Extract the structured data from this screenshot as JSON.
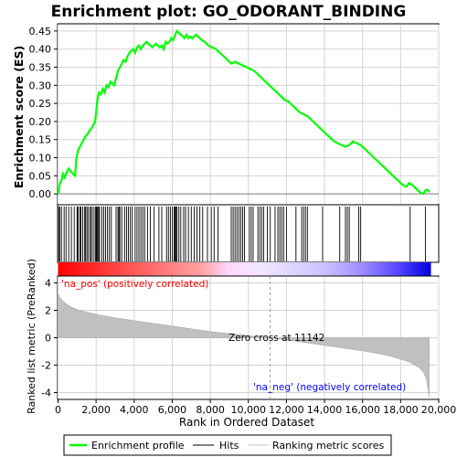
{
  "chart_data": {
    "type": "line",
    "title": "Enrichment plot: GO_ODORANT_BINDING",
    "es_panel": {
      "ylabel": "Enrichment score (ES)",
      "ylim": [
        -0.03,
        0.47
      ],
      "yticks": [
        0.0,
        0.05,
        0.1,
        0.15,
        0.2,
        0.25,
        0.3,
        0.35,
        0.4,
        0.45
      ],
      "ytick_labels": [
        "0.00",
        "0.05",
        "0.10",
        "0.15",
        "0.20",
        "0.25",
        "0.30",
        "0.35",
        "0.40",
        "0.45"
      ],
      "series_name": "Enrichment profile",
      "color": "#00ff00",
      "x": [
        0,
        100,
        200,
        250,
        350,
        450,
        550,
        700,
        900,
        950,
        1050,
        1150,
        1250,
        1350,
        1450,
        1550,
        1650,
        1750,
        1850,
        1950,
        2050,
        2100,
        2150,
        2250,
        2350,
        2450,
        2550,
        2650,
        2750,
        2850,
        2950,
        3050,
        3150,
        3250,
        3350,
        3450,
        3550,
        3650,
        3750,
        3850,
        3950,
        4050,
        4150,
        4250,
        4350,
        4450,
        4550,
        4650,
        4750,
        4850,
        4950,
        5050,
        5150,
        5250,
        5350,
        5450,
        5550,
        5650,
        5750,
        5850,
        5950,
        6050,
        6150,
        6250,
        6350,
        6450,
        6550,
        6650,
        6750,
        6850,
        6950,
        7050,
        7150,
        7250,
        7350,
        7450,
        7550,
        7700,
        7900,
        8100,
        8300,
        8500,
        8700,
        8900,
        9100,
        9300,
        9500,
        9700,
        9900,
        10100,
        10300,
        10500,
        10700,
        10900,
        11100,
        11300,
        11500,
        11700,
        11900,
        12100,
        12300,
        12500,
        12700,
        12900,
        13100,
        13300,
        13500,
        13700,
        13900,
        14100,
        14300,
        14500,
        14700,
        14900,
        15100,
        15300,
        15500,
        15700,
        15900,
        16100,
        16300,
        16500,
        16700,
        16900,
        17100,
        17300,
        17500,
        17700,
        17900,
        18100,
        18300,
        18450,
        18600,
        18800,
        19000,
        19200,
        19300,
        19400,
        19500
      ],
      "y": [
        0.0,
        0.03,
        0.04,
        0.055,
        0.045,
        0.06,
        0.07,
        0.06,
        0.05,
        0.095,
        0.12,
        0.13,
        0.14,
        0.15,
        0.16,
        0.165,
        0.175,
        0.18,
        0.19,
        0.2,
        0.25,
        0.27,
        0.28,
        0.275,
        0.29,
        0.28,
        0.3,
        0.295,
        0.31,
        0.305,
        0.3,
        0.32,
        0.34,
        0.35,
        0.36,
        0.37,
        0.365,
        0.38,
        0.39,
        0.395,
        0.4,
        0.39,
        0.405,
        0.41,
        0.4,
        0.41,
        0.415,
        0.42,
        0.415,
        0.41,
        0.405,
        0.41,
        0.415,
        0.41,
        0.405,
        0.41,
        0.4,
        0.42,
        0.415,
        0.42,
        0.43,
        0.425,
        0.44,
        0.45,
        0.445,
        0.44,
        0.435,
        0.43,
        0.44,
        0.43,
        0.435,
        0.43,
        0.435,
        0.44,
        0.435,
        0.43,
        0.425,
        0.42,
        0.41,
        0.405,
        0.4,
        0.39,
        0.38,
        0.37,
        0.36,
        0.365,
        0.36,
        0.355,
        0.35,
        0.345,
        0.34,
        0.33,
        0.32,
        0.31,
        0.3,
        0.29,
        0.28,
        0.27,
        0.26,
        0.255,
        0.245,
        0.235,
        0.225,
        0.22,
        0.215,
        0.205,
        0.195,
        0.185,
        0.175,
        0.165,
        0.155,
        0.145,
        0.14,
        0.135,
        0.13,
        0.135,
        0.145,
        0.14,
        0.135,
        0.125,
        0.115,
        0.105,
        0.095,
        0.085,
        0.075,
        0.065,
        0.055,
        0.045,
        0.035,
        0.025,
        0.02,
        0.03,
        0.025,
        0.015,
        0.005,
        0.0,
        0.01,
        0.012,
        0.005
      ]
    },
    "hits_x": [
      40,
      90,
      180,
      320,
      420,
      560,
      700,
      850,
      1000,
      1020,
      1060,
      1150,
      1200,
      1300,
      1400,
      1450,
      1520,
      1600,
      1700,
      1750,
      1850,
      1950,
      2000,
      2030,
      2080,
      2130,
      2180,
      2300,
      2400,
      2500,
      2600,
      2700,
      2800,
      3050,
      3150,
      3200,
      3250,
      3350,
      3500,
      3600,
      3700,
      3800,
      3900,
      4050,
      4150,
      4250,
      4350,
      4450,
      4550,
      4700,
      4850,
      5050,
      5300,
      5450,
      5700,
      5800,
      5900,
      6000,
      6100,
      6150,
      6200,
      6250,
      6350,
      6450,
      6600,
      6700,
      6850,
      7000,
      7150,
      7300,
      7450,
      7600,
      7850,
      8050,
      8200,
      8400,
      9100,
      9200,
      9300,
      9400,
      9500,
      9600,
      9700,
      9800,
      10050,
      10150,
      10250,
      10500,
      10600,
      10700,
      10800,
      11000,
      11150,
      11400,
      11550,
      11650,
      11750,
      11850,
      12000,
      12500,
      12800,
      12900,
      13000,
      13100,
      13900,
      14800,
      15100,
      15200,
      15300,
      15800,
      15900,
      18500,
      19300
    ],
    "metric_panel": {
      "ylabel": "Ranked list metric (PreRanked)",
      "ylim": [
        -4.5,
        4.5
      ],
      "yticks": [
        -4,
        -2,
        0,
        2,
        4
      ],
      "ytick_labels": [
        "-4",
        "-2",
        "0",
        "2",
        "4"
      ],
      "profile_x": [
        0,
        100,
        300,
        600,
        1000,
        2000,
        3000,
        4000,
        5000,
        6000,
        7000,
        8000,
        9000,
        10000,
        11142,
        12000,
        13000,
        14000,
        15000,
        16000,
        17000,
        17500,
        18000,
        18500,
        19000,
        19200,
        19350,
        19450,
        19500
      ],
      "profile_y": [
        3.2,
        2.9,
        2.6,
        2.3,
        2.05,
        1.7,
        1.45,
        1.25,
        1.05,
        0.85,
        0.65,
        0.45,
        0.3,
        0.15,
        0.0,
        -0.15,
        -0.35,
        -0.55,
        -0.75,
        -0.95,
        -1.2,
        -1.35,
        -1.55,
        -1.8,
        -2.2,
        -2.5,
        -3.0,
        -3.8,
        -4.3
      ]
    },
    "xlabel": "Rank in Ordered Dataset",
    "xlim": [
      0,
      20000
    ],
    "xticks": [
      0,
      2000,
      4000,
      6000,
      8000,
      10000,
      12000,
      14000,
      16000,
      18000,
      20000
    ],
    "xtick_labels": [
      "0",
      "2,000",
      "4,000",
      "6,000",
      "8,000",
      "10,000",
      "12,000",
      "14,000",
      "16,000",
      "18,000",
      "20,000"
    ],
    "list_size": 19500,
    "zero_cross": 11142,
    "annotations": {
      "pos": "'na_pos' (positively correlated)",
      "neg": "'na_neg' (negatively correlated)",
      "zero": "Zero cross at 11142"
    },
    "colors": {
      "es_line": "#00ff00",
      "pos_text": "#ff0000",
      "neg_text": "#0000ff",
      "metric_fill": "#c0c0c0",
      "grid": "#d3d3d3"
    },
    "grid": true,
    "legend": {
      "placement": "bottom",
      "entries": [
        "Enrichment profile",
        "Hits",
        "Ranking metric scores"
      ]
    }
  }
}
